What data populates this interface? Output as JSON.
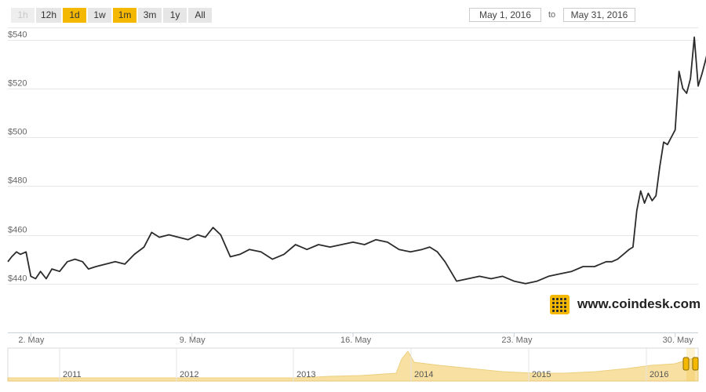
{
  "range_selector": {
    "buttons": [
      {
        "label": "1h",
        "state": "disabled"
      },
      {
        "label": "12h",
        "state": "normal"
      },
      {
        "label": "1d",
        "state": "active"
      },
      {
        "label": "1w",
        "state": "normal"
      },
      {
        "label": "1m",
        "state": "active"
      },
      {
        "label": "3m",
        "state": "normal"
      },
      {
        "label": "1y",
        "state": "normal"
      },
      {
        "label": "All",
        "state": "normal"
      }
    ]
  },
  "date_range": {
    "from": "May 1, 2016",
    "to_label": "to",
    "to": "May 31, 2016"
  },
  "branding": {
    "site": "www.coindesk.com",
    "icon": "coindesk-logo-icon",
    "color": "#f5b800"
  },
  "colors": {
    "line": "#2b2b2b",
    "grid": "#e6e6e6",
    "accent": "#f5b800",
    "navigator": "#f6d98a"
  },
  "chart_data": {
    "type": "line",
    "title": "",
    "xlabel": "",
    "ylabel": "",
    "ylim": [
      420,
      545
    ],
    "xlim": [
      "2016-05-01",
      "2016-05-31"
    ],
    "grid": true,
    "y_ticks": [
      "$440",
      "$460",
      "$480",
      "$500",
      "$520",
      "$540"
    ],
    "y_tick_values": [
      440,
      460,
      480,
      500,
      520,
      540
    ],
    "x_ticks": [
      "2. May",
      "9. May",
      "16. May",
      "23. May",
      "30. May"
    ],
    "x_tick_values": [
      "2016-05-02",
      "2016-05-09",
      "2016-05-16",
      "2016-05-23",
      "2016-05-30"
    ],
    "series": [
      {
        "x": [
          "2016-05-01 00:00",
          "2016-05-01 04:00",
          "2016-05-01 09:00",
          "2016-05-01 13:00",
          "2016-05-01 19:00",
          "2016-05-02 00:00",
          "2016-05-02 05:00",
          "2016-05-02 10:00",
          "2016-05-02 16:00",
          "2016-05-02 22:00",
          "2016-05-03 06:00",
          "2016-05-03 14:00",
          "2016-05-03 22:00",
          "2016-05-04 06:00",
          "2016-05-04 12:00",
          "2016-05-04 20:00",
          "2016-05-05 06:00",
          "2016-05-05 16:00",
          "2016-05-06 02:00",
          "2016-05-06 12:00",
          "2016-05-06 22:00",
          "2016-05-07 06:00",
          "2016-05-07 14:00",
          "2016-05-08 00:00",
          "2016-05-08 10:00",
          "2016-05-08 20:00",
          "2016-05-09 06:00",
          "2016-05-09 14:00",
          "2016-05-09 22:00",
          "2016-05-10 06:00",
          "2016-05-10 16:00",
          "2016-05-11 02:00",
          "2016-05-11 12:00",
          "2016-05-12 00:00",
          "2016-05-12 12:00",
          "2016-05-13 00:00",
          "2016-05-13 12:00",
          "2016-05-14 00:00",
          "2016-05-14 12:00",
          "2016-05-15 00:00",
          "2016-05-15 12:00",
          "2016-05-16 00:00",
          "2016-05-16 12:00",
          "2016-05-17 00:00",
          "2016-05-17 12:00",
          "2016-05-18 00:00",
          "2016-05-18 12:00",
          "2016-05-19 00:00",
          "2016-05-19 08:00",
          "2016-05-19 16:00",
          "2016-05-20 00:00",
          "2016-05-20 12:00",
          "2016-05-21 00:00",
          "2016-05-21 12:00",
          "2016-05-22 00:00",
          "2016-05-22 12:00",
          "2016-05-23 00:00",
          "2016-05-23 12:00",
          "2016-05-24 00:00",
          "2016-05-24 12:00",
          "2016-05-25 00:00",
          "2016-05-25 12:00",
          "2016-05-26 00:00",
          "2016-05-26 12:00",
          "2016-05-27 00:00",
          "2016-05-27 06:00",
          "2016-05-27 12:00",
          "2016-05-27 18:00",
          "2016-05-28 00:00",
          "2016-05-28 04:00",
          "2016-05-28 08:00",
          "2016-05-28 12:00",
          "2016-05-28 16:00",
          "2016-05-28 20:00",
          "2016-05-29 00:00",
          "2016-05-29 04:00",
          "2016-05-29 08:00",
          "2016-05-29 12:00",
          "2016-05-29 16:00",
          "2016-05-29 20:00",
          "2016-05-30 00:00",
          "2016-05-30 04:00",
          "2016-05-30 08:00",
          "2016-05-30 12:00",
          "2016-05-30 16:00",
          "2016-05-30 20:00",
          "2016-05-31 00:00",
          "2016-05-31 04:00",
          "2016-05-31 08:00",
          "2016-05-31 12:00",
          "2016-05-31 16:00",
          "2016-05-31 20:00",
          "2016-05-31 23:00"
        ],
        "values": [
          449,
          451,
          453,
          452,
          453,
          443,
          442,
          445,
          442,
          446,
          445,
          449,
          450,
          449,
          446,
          447,
          448,
          449,
          448,
          452,
          455,
          461,
          459,
          460,
          459,
          458,
          460,
          459,
          463,
          460,
          451,
          452,
          454,
          453,
          450,
          452,
          456,
          454,
          456,
          455,
          456,
          457,
          456,
          458,
          457,
          454,
          453,
          454,
          455,
          453,
          449,
          441,
          442,
          443,
          442,
          443,
          441,
          440,
          441,
          443,
          444,
          445,
          447,
          447,
          449,
          449,
          450,
          452,
          454,
          455,
          470,
          478,
          473,
          477,
          474,
          476,
          488,
          498,
          497,
          500,
          503,
          527,
          520,
          518,
          524,
          541,
          521,
          526,
          532,
          539,
          535,
          533,
          535
        ]
      }
    ]
  },
  "navigator": {
    "year_labels": [
      "2011",
      "2012",
      "2013",
      "2014",
      "2015",
      "2016"
    ]
  }
}
